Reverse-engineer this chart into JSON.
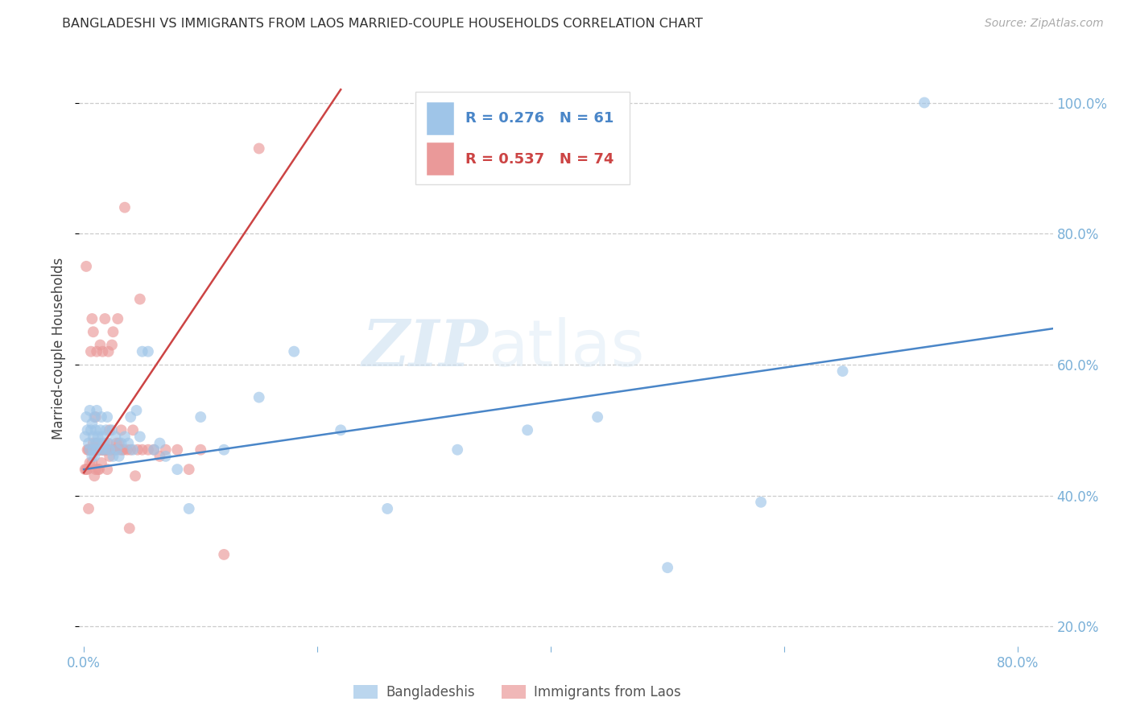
{
  "title": "BANGLADESHI VS IMMIGRANTS FROM LAOS MARRIED-COUPLE HOUSEHOLDS CORRELATION CHART",
  "source": "Source: ZipAtlas.com",
  "ylabel_left": "Married-couple Households",
  "xlim": [
    -0.004,
    0.83
  ],
  "ylim": [
    0.17,
    1.08
  ],
  "grid_color": "#cccccc",
  "background_color": "#ffffff",
  "blue_color": "#9fc5e8",
  "pink_color": "#ea9999",
  "blue_line_color": "#4a86c8",
  "pink_line_color": "#cc4444",
  "legend_R_blue": "R = 0.276",
  "legend_N_blue": "N = 61",
  "legend_R_pink": "R = 0.537",
  "legend_N_pink": "N = 74",
  "legend_label_blue": "Bangladeshis",
  "legend_label_pink": "Immigrants from Laos",
  "watermark_zip": "ZIP",
  "watermark_atlas": "atlas",
  "blue_x": [
    0.001,
    0.002,
    0.003,
    0.004,
    0.005,
    0.005,
    0.006,
    0.007,
    0.007,
    0.008,
    0.008,
    0.009,
    0.009,
    0.01,
    0.01,
    0.011,
    0.011,
    0.012,
    0.013,
    0.014,
    0.015,
    0.015,
    0.016,
    0.017,
    0.018,
    0.019,
    0.02,
    0.021,
    0.022,
    0.024,
    0.025,
    0.027,
    0.028,
    0.03,
    0.032,
    0.035,
    0.038,
    0.04,
    0.042,
    0.045,
    0.048,
    0.05,
    0.055,
    0.06,
    0.065,
    0.07,
    0.08,
    0.09,
    0.1,
    0.12,
    0.15,
    0.18,
    0.22,
    0.26,
    0.32,
    0.38,
    0.44,
    0.5,
    0.58,
    0.65,
    0.72
  ],
  "blue_y": [
    0.49,
    0.52,
    0.5,
    0.48,
    0.53,
    0.47,
    0.5,
    0.46,
    0.51,
    0.49,
    0.47,
    0.52,
    0.46,
    0.5,
    0.48,
    0.47,
    0.53,
    0.49,
    0.48,
    0.5,
    0.47,
    0.52,
    0.49,
    0.48,
    0.47,
    0.5,
    0.52,
    0.48,
    0.47,
    0.5,
    0.46,
    0.49,
    0.47,
    0.46,
    0.48,
    0.49,
    0.48,
    0.52,
    0.47,
    0.53,
    0.49,
    0.62,
    0.62,
    0.47,
    0.48,
    0.46,
    0.44,
    0.38,
    0.52,
    0.47,
    0.55,
    0.62,
    0.5,
    0.38,
    0.47,
    0.5,
    0.52,
    0.29,
    0.39,
    0.59,
    1.0
  ],
  "pink_x": [
    0.001,
    0.002,
    0.002,
    0.003,
    0.003,
    0.004,
    0.004,
    0.005,
    0.005,
    0.006,
    0.006,
    0.007,
    0.007,
    0.008,
    0.008,
    0.008,
    0.009,
    0.009,
    0.01,
    0.01,
    0.01,
    0.011,
    0.011,
    0.012,
    0.012,
    0.013,
    0.013,
    0.014,
    0.014,
    0.015,
    0.015,
    0.016,
    0.016,
    0.017,
    0.017,
    0.018,
    0.018,
    0.019,
    0.019,
    0.02,
    0.02,
    0.021,
    0.022,
    0.022,
    0.023,
    0.024,
    0.025,
    0.026,
    0.027,
    0.028,
    0.029,
    0.03,
    0.031,
    0.032,
    0.033,
    0.034,
    0.035,
    0.037,
    0.039,
    0.04,
    0.042,
    0.044,
    0.046,
    0.048,
    0.05,
    0.055,
    0.06,
    0.065,
    0.07,
    0.08,
    0.09,
    0.1,
    0.12,
    0.15
  ],
  "pink_y": [
    0.44,
    0.75,
    0.44,
    0.44,
    0.47,
    0.38,
    0.47,
    0.45,
    0.47,
    0.47,
    0.62,
    0.45,
    0.67,
    0.47,
    0.48,
    0.65,
    0.43,
    0.47,
    0.44,
    0.47,
    0.52,
    0.48,
    0.62,
    0.44,
    0.47,
    0.44,
    0.47,
    0.47,
    0.63,
    0.45,
    0.47,
    0.62,
    0.47,
    0.47,
    0.47,
    0.47,
    0.67,
    0.47,
    0.47,
    0.44,
    0.48,
    0.62,
    0.46,
    0.5,
    0.47,
    0.63,
    0.65,
    0.47,
    0.47,
    0.48,
    0.67,
    0.48,
    0.47,
    0.5,
    0.47,
    0.47,
    0.84,
    0.47,
    0.35,
    0.47,
    0.5,
    0.43,
    0.47,
    0.7,
    0.47,
    0.47,
    0.47,
    0.46,
    0.47,
    0.47,
    0.44,
    0.47,
    0.31,
    0.93
  ],
  "blue_trend_x": [
    0.0,
    0.83
  ],
  "blue_trend_y": [
    0.44,
    0.655
  ],
  "pink_trend_x": [
    0.0,
    0.22
  ],
  "pink_trend_y": [
    0.435,
    1.02
  ],
  "yticks": [
    0.2,
    0.4,
    0.6,
    0.8,
    1.0
  ],
  "xticks": [
    0.0,
    0.2,
    0.4,
    0.6,
    0.8
  ]
}
